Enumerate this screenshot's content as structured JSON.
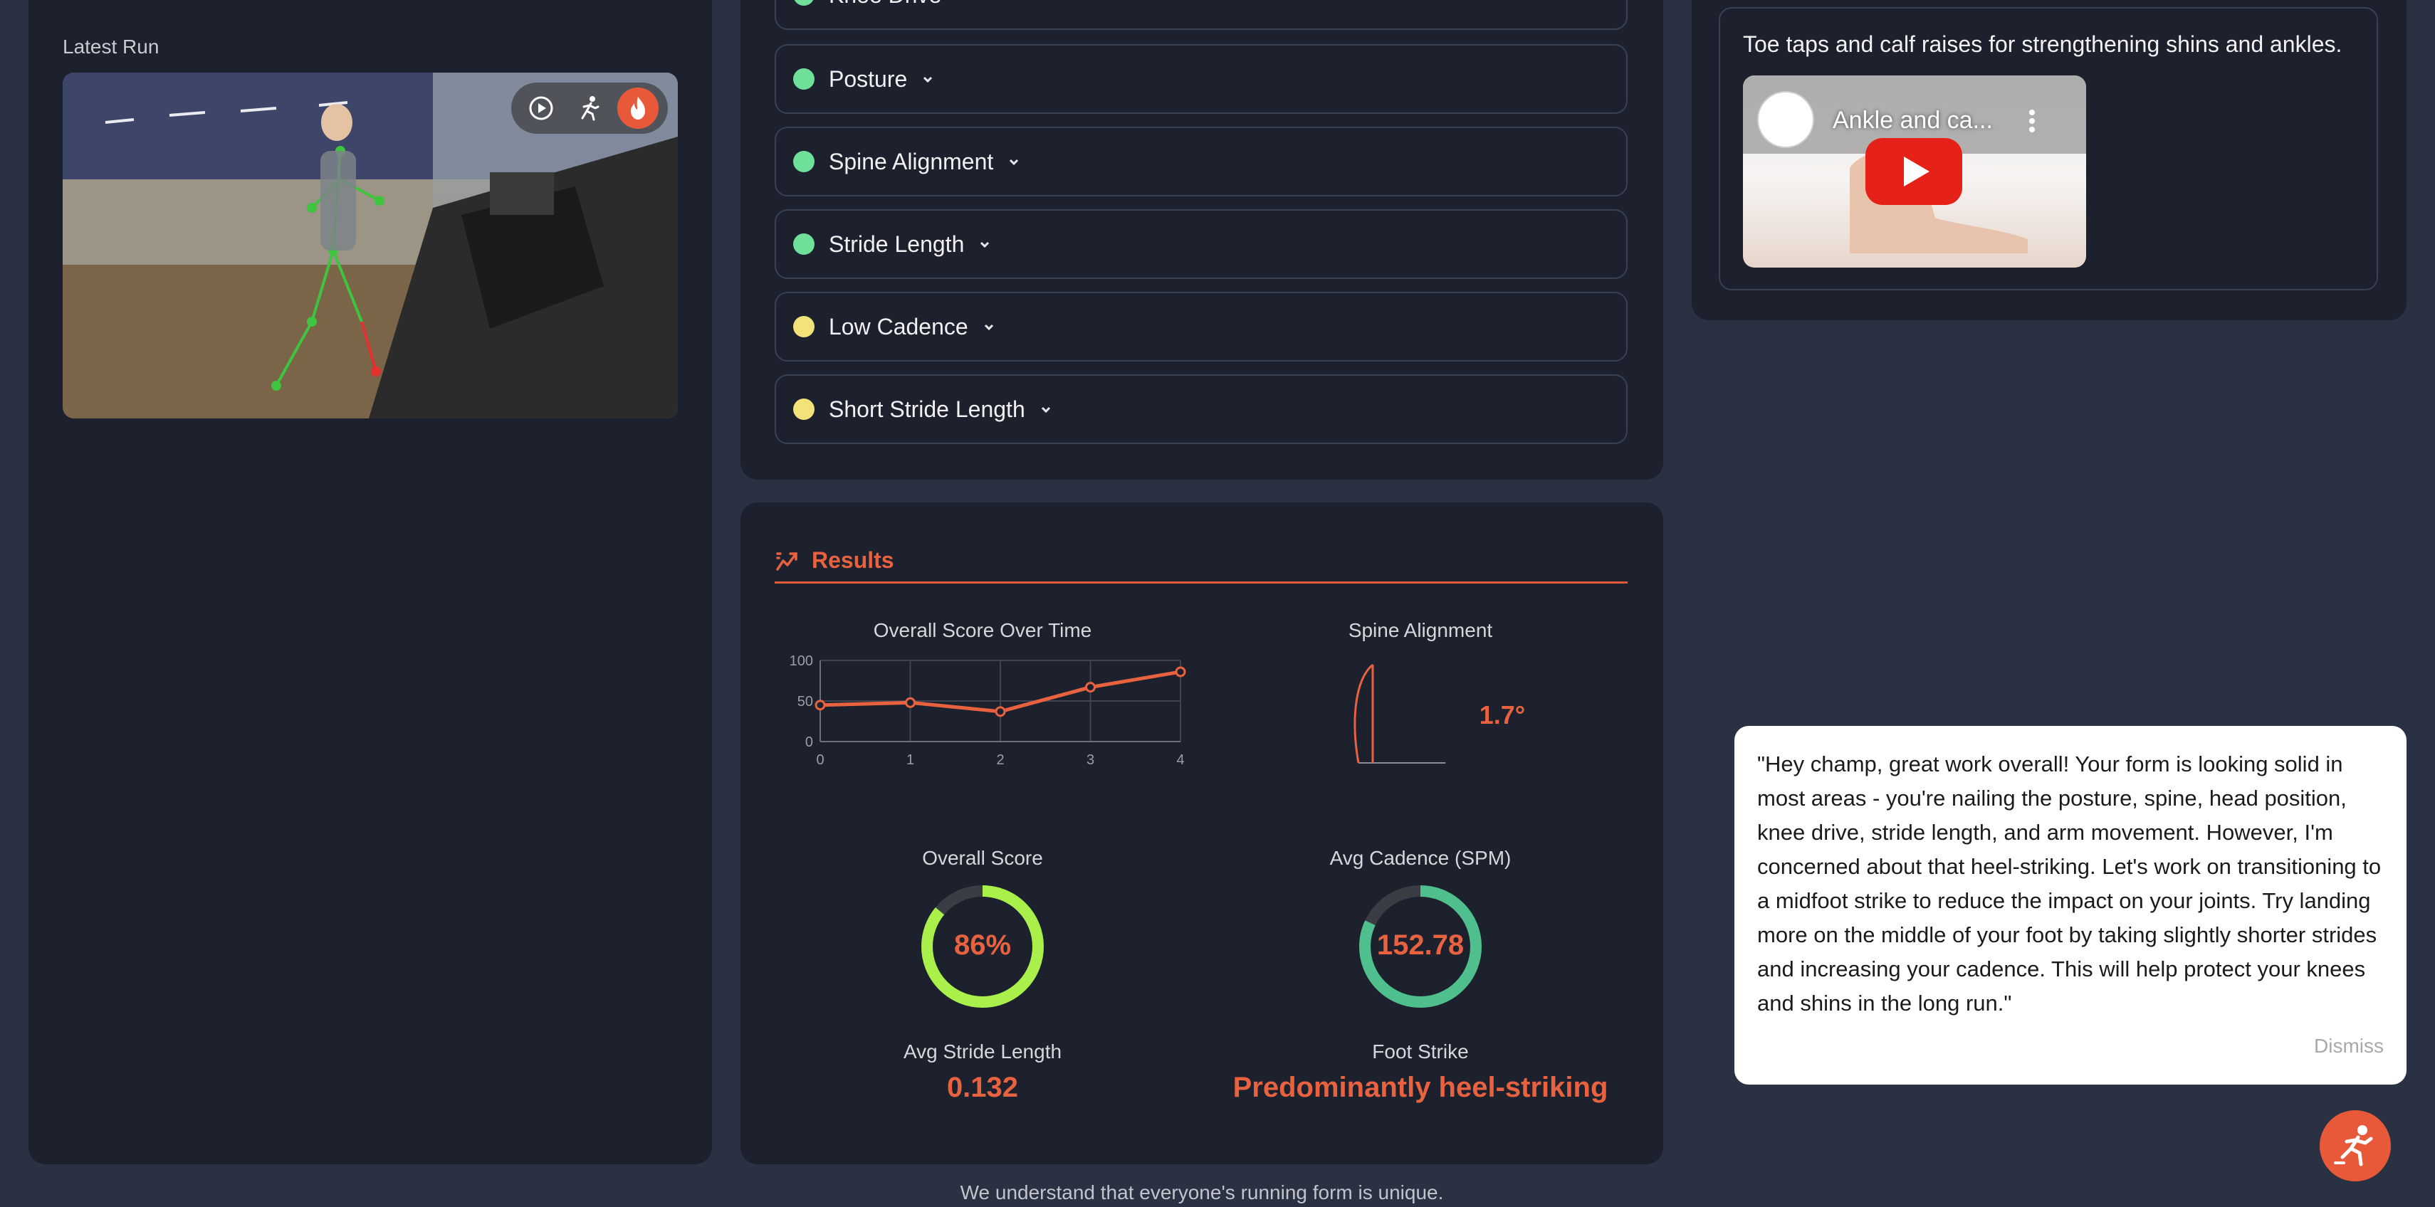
{
  "left": {
    "latest_run_label": "Latest Run"
  },
  "checks": [
    {
      "label": "Knee Drive",
      "status": "good"
    },
    {
      "label": "Posture",
      "status": "good"
    },
    {
      "label": "Spine Alignment",
      "status": "good"
    },
    {
      "label": "Stride Length",
      "status": "good"
    },
    {
      "label": "Low Cadence",
      "status": "warning"
    },
    {
      "label": "Short Stride Length",
      "status": "warning"
    }
  ],
  "results": {
    "heading": "Results",
    "score_over_time_title": "Overall Score Over Time",
    "spine_title": "Spine Alignment",
    "spine_value": "1.7°",
    "overall_title": "Overall Score",
    "overall_value": "86%",
    "cadence_title": "Avg Cadence (SPM)",
    "cadence_value": "152.78",
    "stride_title": "Avg Stride Length",
    "stride_value": "0.132",
    "foot_title": "Foot Strike",
    "foot_value": "Predominantly heel-striking"
  },
  "chart_data": {
    "type": "line",
    "title": "Overall Score Over Time",
    "x": [
      0,
      1,
      2,
      3,
      4
    ],
    "series": [
      {
        "values": [
          45,
          48,
          37,
          67,
          86
        ]
      }
    ],
    "xlim": [
      0,
      4
    ],
    "ylim": [
      0,
      100
    ],
    "yticks": [
      0,
      50,
      100
    ],
    "grid": true
  },
  "gauges": {
    "overall_fraction": 0.86,
    "cadence_fraction": 0.82
  },
  "right": {
    "tip_text": "Toe taps and calf raises for strengthening shins and ankles.",
    "video_title": "Ankle and ca..."
  },
  "coach": {
    "message": "\"Hey champ, great work overall! Your form is looking solid in most areas - you're nailing the posture, spine, head position, knee drive, stride length, and arm movement. However, I'm concerned about that heel-striking. Let's work on transitioning to a midfoot strike to reduce the impact on your joints. Try landing more on the middle of your foot by taking slightly shorter strides and increasing your cadence. This will help protect your knees and shins in the long run.\"",
    "dismiss_label": "Dismiss"
  },
  "footer": {
    "text": "We understand that everyone's running form is unique."
  },
  "colors": {
    "accent": "#e8623f",
    "good": "#6fe09a",
    "warning": "#f3e27a",
    "gauge_lime": "#a9f04a",
    "gauge_green": "#4fc08d"
  }
}
